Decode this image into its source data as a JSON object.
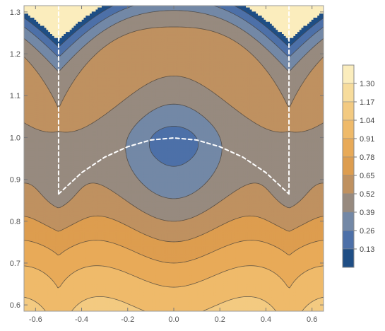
{
  "chart_data": {
    "type": "heatmap",
    "subtype": "contour",
    "title": "",
    "xlabel": "",
    "ylabel": "",
    "xlim": [
      -0.65,
      0.65
    ],
    "ylim": [
      0.585,
      1.315
    ],
    "x_ticks": [
      -0.6,
      -0.4,
      -0.2,
      0.0,
      0.2,
      0.4,
      0.6
    ],
    "x_tick_labels": [
      "-0.6",
      "-0.4",
      "-0.2",
      "0.0",
      "0.2",
      "0.4",
      "0.6"
    ],
    "y_ticks": [
      0.6,
      0.7,
      0.8,
      0.9,
      1.0,
      1.1,
      1.2,
      1.3
    ],
    "y_tick_labels": [
      "0.6",
      "0.7",
      "0.8",
      "0.9",
      "1.0",
      "1.1",
      "1.2",
      "1.3"
    ],
    "contour_levels": [
      0.065,
      0.13,
      0.26,
      0.39,
      0.52,
      0.65,
      0.78,
      0.91,
      1.04,
      1.17,
      1.3,
      1.365
    ],
    "legend": {
      "position": "right",
      "labels": [
        "1.30",
        "1.17",
        "1.04",
        "0.91",
        "0.78",
        "0.65",
        "0.52",
        "0.39",
        "0.26",
        "0.13"
      ]
    },
    "colormap": [
      "#1f4e85",
      "#4d70a8",
      "#7388a6",
      "#978a7f",
      "#bf9160",
      "#dd9d4f",
      "#e8aa58",
      "#efba6a",
      "#f3ca81",
      "#f7dc9c",
      "#fbedbd"
    ],
    "overlay_paths": [
      {
        "style": "white-dashed",
        "points": [
          [
            -0.5,
            1.315
          ],
          [
            -0.5,
            0.865
          ]
        ]
      },
      {
        "style": "white-dashed",
        "points": [
          [
            0.5,
            1.315
          ],
          [
            0.5,
            0.865
          ]
        ]
      },
      {
        "style": "white-dashed",
        "points": [
          [
            -0.5,
            0.865
          ],
          [
            -0.4,
            0.916
          ],
          [
            -0.3,
            0.953
          ],
          [
            -0.2,
            0.978
          ],
          [
            -0.1,
            0.994
          ],
          [
            0.0,
            0.999
          ],
          [
            0.1,
            0.994
          ],
          [
            0.2,
            0.978
          ],
          [
            0.3,
            0.953
          ],
          [
            0.4,
            0.916
          ],
          [
            0.5,
            0.865
          ]
        ]
      }
    ],
    "grid": false
  }
}
